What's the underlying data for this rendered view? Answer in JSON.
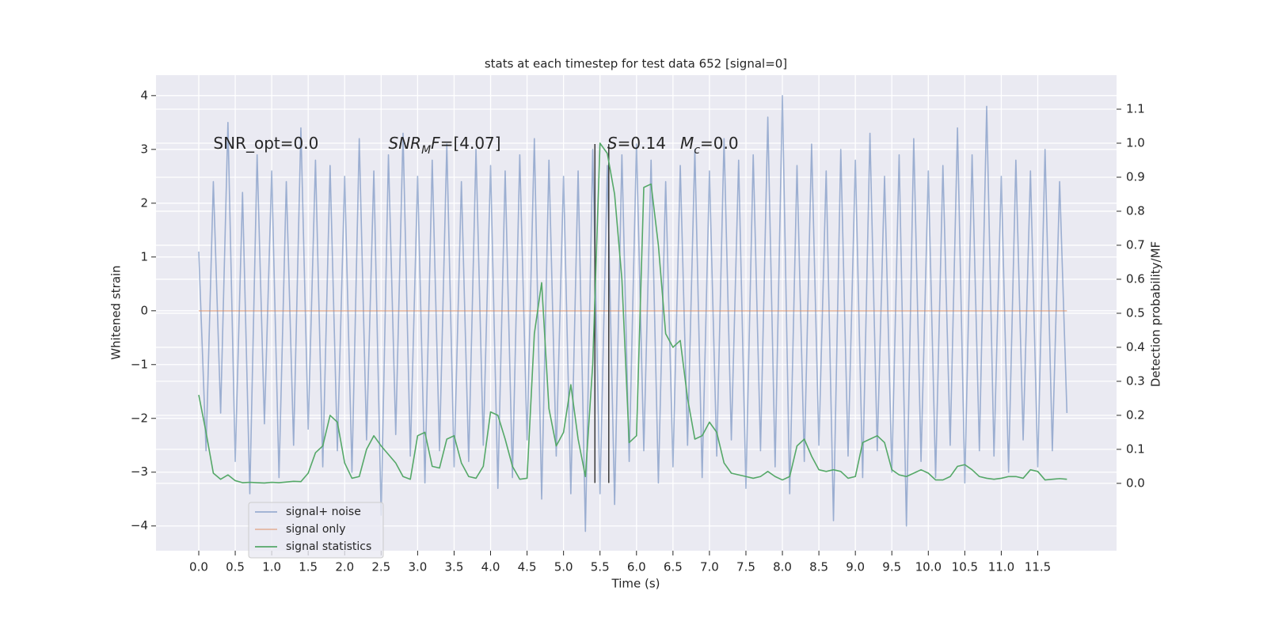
{
  "chart_data": {
    "type": "line",
    "title": "stats at each timestep for test data 652 [signal=0]",
    "xlabel": "Time (s)",
    "ylabel": "Whitened strain",
    "y2label": "Detection probability/MF",
    "xlim": [
      -0.586,
      12.58
    ],
    "ylim": [
      -4.46,
      4.38
    ],
    "y2lim": [
      -0.198,
      1.2
    ],
    "xticks": [
      {
        "value": 0,
        "label": "0.0"
      },
      0.5,
      {
        "value": 1,
        "label": "1.0"
      },
      1.5,
      {
        "value": 2,
        "label": "2.0"
      },
      2.5,
      {
        "value": 3,
        "label": "3.0"
      },
      3.5,
      {
        "value": 4,
        "label": "4.0"
      },
      4.5,
      {
        "value": 5,
        "label": "5.0"
      },
      5.5,
      {
        "value": 6,
        "label": "6.0"
      },
      6.5,
      {
        "value": 7,
        "label": "7.0"
      },
      7.5,
      {
        "value": 8,
        "label": "8.0"
      },
      8.5,
      {
        "value": 9,
        "label": "9.0"
      },
      9.5,
      {
        "value": 10,
        "label": "10.0"
      },
      10.5,
      {
        "value": 11,
        "label": "11.0"
      },
      11.5
    ],
    "yticks": [
      {
        "value": -4,
        "label": "−4"
      },
      {
        "value": -3,
        "label": "−3"
      },
      {
        "value": -2,
        "label": "−2"
      },
      {
        "value": -1,
        "label": "−1"
      },
      0,
      1,
      2,
      3,
      4
    ],
    "y2ticks": [
      {
        "value": 0,
        "label": "0.0"
      },
      0.1,
      0.2,
      0.3,
      0.4,
      0.5,
      0.6,
      0.7,
      0.8,
      0.9,
      {
        "value": 1,
        "label": "1.0"
      },
      1.1
    ],
    "grid": true,
    "legend": "lower left",
    "x": [
      0,
      0.1,
      0.2,
      0.3,
      0.4,
      0.5,
      0.6,
      0.7,
      0.8,
      0.9,
      1,
      1.1,
      1.2,
      1.3,
      1.4,
      1.5,
      1.6,
      1.7,
      1.8,
      1.9,
      2,
      2.1,
      2.2,
      2.3,
      2.4,
      2.5,
      2.6,
      2.7,
      2.8,
      2.9,
      3,
      3.1,
      3.2,
      3.3,
      3.4,
      3.5,
      3.6,
      3.7,
      3.8,
      3.9,
      4,
      4.1,
      4.2,
      4.3,
      4.4,
      4.5,
      4.6,
      4.7,
      4.8,
      4.9,
      5,
      5.1,
      5.2,
      5.3,
      5.4,
      5.5,
      5.6,
      5.7,
      5.8,
      5.9,
      6,
      6.1,
      6.2,
      6.3,
      6.4,
      6.5,
      6.6,
      6.7,
      6.8,
      6.9,
      7,
      7.1,
      7.2,
      7.3,
      7.4,
      7.5,
      7.6,
      7.7,
      7.8,
      7.9,
      8,
      8.1,
      8.2,
      8.3,
      8.4,
      8.5,
      8.6,
      8.7,
      8.8,
      8.9,
      9,
      9.1,
      9.2,
      9.3,
      9.4,
      9.5,
      9.6,
      9.7,
      9.8,
      9.9,
      10,
      10.1,
      10.2,
      10.3,
      10.4,
      10.5,
      10.6,
      10.7,
      10.8,
      10.9,
      11,
      11.1,
      11.2,
      11.3,
      11.4,
      11.5,
      11.6,
      11.7,
      11.8,
      11.9
    ],
    "series": [
      {
        "name": "signal+ noise",
        "color": "#4c72b0",
        "opacity": 0.5,
        "values": [
          1.1,
          -2.6,
          2.4,
          -1.9,
          3.5,
          -2.8,
          2.2,
          -3.4,
          2.9,
          -2.1,
          2.6,
          -3.1,
          2.4,
          -2.5,
          3.4,
          -2.2,
          2.8,
          -2.9,
          2.7,
          -2.6,
          2.5,
          -3.0,
          3.2,
          -2.4,
          2.6,
          -3.8,
          2.9,
          -2.3,
          3.3,
          -2.7,
          2.5,
          -3.2,
          2.8,
          -2.6,
          3.1,
          -2.9,
          2.4,
          -2.8,
          3.0,
          -2.5,
          2.7,
          -3.3,
          2.6,
          -3.1,
          2.9,
          -2.4,
          3.2,
          -3.5,
          2.8,
          -2.7,
          2.5,
          -3.4,
          2.6,
          -4.1,
          3.0,
          -3.4,
          2.7,
          -3.6,
          2.9,
          -2.8,
          3.1,
          -2.6,
          2.8,
          -3.2,
          2.4,
          -2.9,
          2.7,
          -2.5,
          3.0,
          -3.1,
          2.6,
          -2.7,
          3.2,
          -2.4,
          2.8,
          -3.3,
          2.9,
          -2.6,
          3.6,
          -2.9,
          4.0,
          -3.4,
          2.7,
          -2.8,
          3.1,
          -2.5,
          2.6,
          -3.9,
          3.0,
          -2.7,
          2.8,
          -3.1,
          3.3,
          -2.6,
          2.5,
          -3.0,
          2.9,
          -4.0,
          3.2,
          -2.8,
          2.6,
          -3.1,
          2.7,
          -2.5,
          3.4,
          -3.2,
          2.9,
          -2.6,
          3.8,
          -2.7,
          2.5,
          -3.0,
          2.8,
          -2.4,
          2.6,
          -2.9,
          3.0,
          -2.6,
          2.4,
          -1.9
        ]
      },
      {
        "name": "signal only",
        "color": "#dd8452",
        "opacity": 0.5,
        "x": [
          0,
          11.9
        ],
        "values": [
          0,
          0
        ]
      },
      {
        "name": "signal statistics",
        "color": "#55a868",
        "opacity": 1,
        "axis": "y2",
        "values": [
          0.26,
          0.15,
          0.03,
          0.012,
          0.025,
          0.008,
          0.002,
          0.003,
          0.002,
          0.001,
          0.003,
          0.002,
          0.004,
          0.006,
          0.005,
          0.03,
          0.09,
          0.11,
          0.2,
          0.18,
          0.06,
          0.015,
          0.02,
          0.1,
          0.14,
          0.11,
          0.085,
          0.06,
          0.02,
          0.012,
          0.14,
          0.15,
          0.05,
          0.045,
          0.13,
          0.14,
          0.06,
          0.02,
          0.015,
          0.05,
          0.21,
          0.2,
          0.13,
          0.05,
          0.012,
          0.015,
          0.44,
          0.59,
          0.22,
          0.11,
          0.15,
          0.29,
          0.13,
          0.02,
          0.35,
          1.0,
          0.97,
          0.85,
          0.6,
          0.12,
          0.14,
          0.87,
          0.88,
          0.7,
          0.44,
          0.4,
          0.42,
          0.25,
          0.13,
          0.14,
          0.18,
          0.15,
          0.06,
          0.03,
          0.025,
          0.02,
          0.015,
          0.02,
          0.035,
          0.02,
          0.01,
          0.02,
          0.11,
          0.13,
          0.08,
          0.04,
          0.035,
          0.04,
          0.035,
          0.015,
          0.02,
          0.12,
          0.13,
          0.14,
          0.12,
          0.04,
          0.025,
          0.02,
          0.03,
          0.04,
          0.03,
          0.01,
          0.01,
          0.02,
          0.05,
          0.055,
          0.04,
          0.02,
          0.015,
          0.012,
          0.015,
          0.02,
          0.02,
          0.015,
          0.04,
          0.035,
          0.01,
          0.012,
          0.014,
          0.012
        ]
      }
    ],
    "vlines": {
      "x": [
        5.43,
        5.62
      ],
      "ymin": -3.2,
      "ymax": 3.1,
      "color": "#3a3a3a"
    },
    "annotations": [
      {
        "x": 0.2,
        "y": 3.1,
        "parts": [
          {
            "text": "SNR_opt=0.0"
          }
        ]
      },
      {
        "x": 2.6,
        "y": 3.1,
        "parts": [
          {
            "text": "SNR",
            "style": "italic"
          },
          {
            "text": "M",
            "style": "italic",
            "sub": true
          },
          {
            "text": "F",
            "style": "italic"
          },
          {
            "text": "=[4.07]"
          }
        ]
      },
      {
        "x": 5.6,
        "y": 3.1,
        "parts": [
          {
            "text": "S",
            "style": "italic"
          },
          {
            "text": "=0.14"
          }
        ]
      },
      {
        "x": 6.6,
        "y": 3.1,
        "parts": [
          {
            "text": "M",
            "style": "italic"
          },
          {
            "text": "c",
            "style": "italic",
            "sub": true
          },
          {
            "text": "=0.0"
          }
        ]
      }
    ]
  }
}
